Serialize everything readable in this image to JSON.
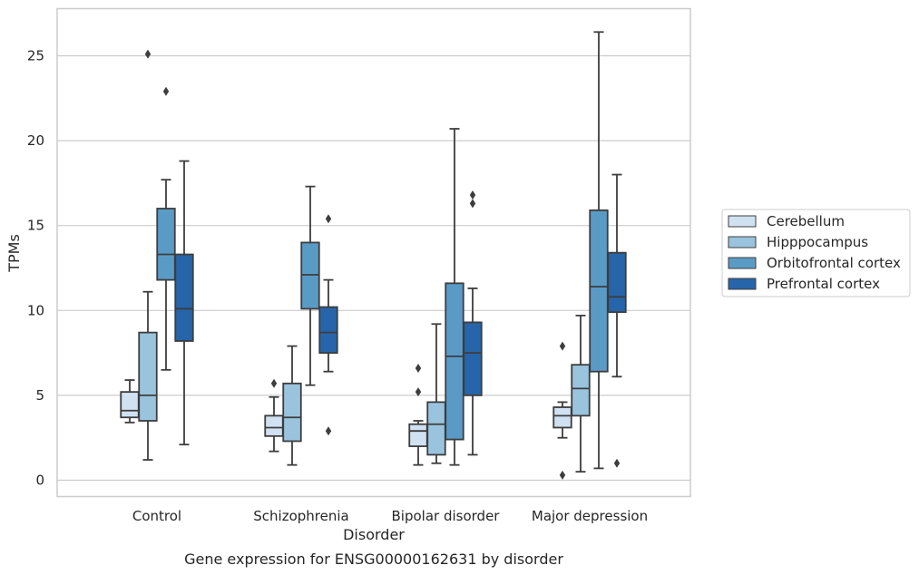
{
  "chart_data": {
    "type": "box",
    "xlabel": "Disorder",
    "ylabel": "TPMs",
    "caption": "Gene expression for ENSG00000162631 by disorder",
    "ylim": [
      -1,
      27.5
    ],
    "yticks": [
      0,
      5,
      10,
      15,
      20,
      25
    ],
    "grid": "horizontal",
    "legend_position": "right",
    "categories": [
      "Control",
      "Schizophrenia",
      "Bipolar disorder",
      "Major depression"
    ],
    "series": [
      {
        "name": "Cerebellum",
        "color": "#d0e1f2",
        "boxes": [
          {
            "whisker_low": 3.4,
            "q1": 3.7,
            "median": 4.1,
            "q3": 5.2,
            "whisker_high": 5.9,
            "outliers": []
          },
          {
            "whisker_low": 1.7,
            "q1": 2.6,
            "median": 3.1,
            "q3": 3.8,
            "whisker_high": 4.9,
            "outliers": [
              5.7
            ]
          },
          {
            "whisker_low": 0.9,
            "q1": 2.0,
            "median": 2.9,
            "q3": 3.3,
            "whisker_high": 3.5,
            "outliers": [
              5.2,
              6.6
            ]
          },
          {
            "whisker_low": 2.5,
            "q1": 3.1,
            "median": 3.8,
            "q3": 4.3,
            "whisker_high": 4.6,
            "outliers": [
              0.3,
              7.9
            ]
          }
        ]
      },
      {
        "name": "Hipppocampus",
        "color": "#9ac4de",
        "boxes": [
          {
            "whisker_low": 1.2,
            "q1": 3.5,
            "median": 5.0,
            "q3": 8.7,
            "whisker_high": 11.1,
            "outliers": [
              25.1
            ]
          },
          {
            "whisker_low": 0.9,
            "q1": 2.3,
            "median": 3.7,
            "q3": 5.7,
            "whisker_high": 7.9,
            "outliers": []
          },
          {
            "whisker_low": 1.0,
            "q1": 1.5,
            "median": 3.3,
            "q3": 4.6,
            "whisker_high": 9.2,
            "outliers": []
          },
          {
            "whisker_low": 0.5,
            "q1": 3.8,
            "median": 5.4,
            "q3": 6.8,
            "whisker_high": 9.7,
            "outliers": []
          }
        ]
      },
      {
        "name": "Orbitofrontal cortex",
        "color": "#5a9bc6",
        "boxes": [
          {
            "whisker_low": 6.5,
            "q1": 11.8,
            "median": 13.3,
            "q3": 16.0,
            "whisker_high": 17.7,
            "outliers": [
              22.9
            ]
          },
          {
            "whisker_low": 5.6,
            "q1": 10.1,
            "median": 12.1,
            "q3": 14.0,
            "whisker_high": 17.3,
            "outliers": []
          },
          {
            "whisker_low": 0.9,
            "q1": 2.4,
            "median": 7.3,
            "q3": 11.6,
            "whisker_high": 20.7,
            "outliers": []
          },
          {
            "whisker_low": 0.7,
            "q1": 6.4,
            "median": 11.4,
            "q3": 15.9,
            "whisker_high": 26.4,
            "outliers": []
          }
        ]
      },
      {
        "name": "Prefrontal cortex",
        "color": "#2665a9",
        "boxes": [
          {
            "whisker_low": 2.1,
            "q1": 8.2,
            "median": 10.1,
            "q3": 13.3,
            "whisker_high": 18.8,
            "outliers": []
          },
          {
            "whisker_low": 6.4,
            "q1": 7.5,
            "median": 8.7,
            "q3": 10.2,
            "whisker_high": 11.8,
            "outliers": [
              2.9,
              15.4
            ]
          },
          {
            "whisker_low": 1.5,
            "q1": 5.0,
            "median": 7.5,
            "q3": 9.3,
            "whisker_high": 11.3,
            "outliers": [
              16.3,
              16.8
            ]
          },
          {
            "whisker_low": 6.1,
            "q1": 9.9,
            "median": 10.8,
            "q3": 13.4,
            "whisker_high": 18.0,
            "outliers": [
              1.0
            ]
          }
        ]
      }
    ]
  }
}
